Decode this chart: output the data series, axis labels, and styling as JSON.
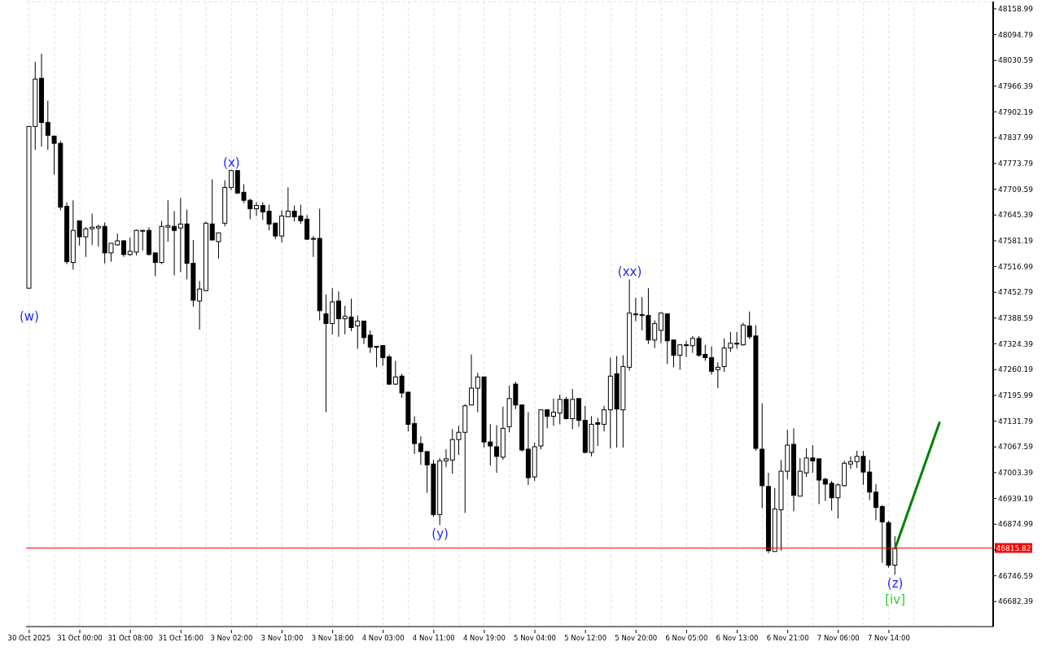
{
  "chart_data": {
    "type": "candlestick",
    "categories": [
      "30 Oct 2025",
      null,
      null,
      null,
      null,
      null,
      null,
      null,
      "31 Oct 00:00",
      null,
      null,
      null,
      null,
      null,
      null,
      null,
      "31 Oct 08:00",
      null,
      null,
      null,
      null,
      null,
      null,
      null,
      "31 Oct 16:00",
      null,
      null,
      null,
      null,
      null,
      null,
      null,
      "3 Nov 02:00",
      null,
      null,
      null,
      null,
      null,
      null,
      null,
      "3 Nov 10:00",
      null,
      null,
      null,
      null,
      null,
      null,
      null,
      "3 Nov 18:00",
      null,
      null,
      null,
      null,
      null,
      null,
      null,
      "4 Nov 03:00",
      null,
      null,
      null,
      null,
      null,
      null,
      null,
      "4 Nov 11:00",
      null,
      null,
      null,
      null,
      null,
      null,
      null,
      "4 Nov 19:00",
      null,
      null,
      null,
      null,
      null,
      null,
      null,
      "5 Nov 04:00",
      null,
      null,
      null,
      null,
      null,
      null,
      null,
      "5 Nov 12:00",
      null,
      null,
      null,
      null,
      null,
      null,
      null,
      "5 Nov 20:00",
      null,
      null,
      null,
      null,
      null,
      null,
      null,
      "6 Nov 05:00",
      null,
      null,
      null,
      null,
      null,
      null,
      null,
      "6 Nov 13:00",
      null,
      null,
      null,
      null,
      null,
      null,
      null,
      "6 Nov 21:00",
      null,
      null,
      null,
      null,
      null,
      null,
      null,
      "7 Nov 06:00",
      null,
      null,
      null,
      null,
      null,
      null,
      null,
      "7 Nov 14:00",
      null,
      null,
      null,
      null,
      null,
      null,
      null,
      null,
      null,
      null,
      null,
      null,
      null,
      null,
      null,
      null
    ],
    "ohlc": [
      [
        47463,
        47866,
        47463,
        47866
      ],
      [
        47866,
        48027,
        47808,
        47984
      ],
      [
        47986,
        48047,
        47816,
        47876
      ],
      [
        47876,
        47930,
        47808,
        47844
      ],
      [
        47842,
        47842,
        47746,
        47824
      ],
      [
        47824,
        47830,
        47657,
        47665
      ],
      [
        47667,
        47677,
        47523,
        47529
      ],
      [
        47527,
        47682,
        47509,
        47607
      ],
      [
        47631,
        47631,
        47569,
        47591
      ],
      [
        47591,
        47615,
        47541,
        47611
      ],
      [
        47611,
        47649,
        47571,
        47615
      ],
      [
        47613,
        47621,
        47567,
        47617
      ],
      [
        47617,
        47627,
        47525,
        47551
      ],
      [
        47551,
        47575,
        47529,
        47575
      ],
      [
        47571,
        47599,
        47569,
        47581
      ],
      [
        47581,
        47583,
        47541,
        47547
      ],
      [
        47547,
        47589,
        47543,
        47555
      ],
      [
        47553,
        47609,
        47545,
        47607
      ],
      [
        47605,
        47607,
        47557,
        47607
      ],
      [
        47607,
        47615,
        47545,
        47547
      ],
      [
        47551,
        47551,
        47493,
        47527
      ],
      [
        47527,
        47631,
        47523,
        47617
      ],
      [
        47615,
        47682,
        47579,
        47619
      ],
      [
        47617,
        47655,
        47495,
        47607
      ],
      [
        47613,
        47688,
        47503,
        47623
      ],
      [
        47623,
        47659,
        47485,
        47525
      ],
      [
        47525,
        47583,
        47417,
        47433
      ],
      [
        47431,
        47481,
        47360,
        47461
      ],
      [
        47457,
        47629,
        47455,
        47625
      ],
      [
        47623,
        47734,
        47583,
        47583
      ],
      [
        47579,
        47601,
        47537,
        47601
      ],
      [
        47625,
        47732,
        47617,
        47714
      ],
      [
        47714,
        47758,
        47708,
        47756
      ],
      [
        47756,
        47756,
        47698,
        47700
      ],
      [
        47702,
        47722,
        47675,
        47682
      ],
      [
        47682,
        47686,
        47635,
        47661
      ],
      [
        47661,
        47677,
        47643,
        47669
      ],
      [
        47669,
        47677,
        47633,
        47653
      ],
      [
        47655,
        47671,
        47607,
        47623
      ],
      [
        47625,
        47627,
        47585,
        47593
      ],
      [
        47593,
        47657,
        47577,
        47643
      ],
      [
        47641,
        47714,
        47641,
        47655
      ],
      [
        47655,
        47669,
        47629,
        47641
      ],
      [
        47643,
        47671,
        47623,
        47631
      ],
      [
        47635,
        47645,
        47583,
        47585
      ],
      [
        47587,
        47593,
        47541,
        47585
      ],
      [
        47587,
        47661,
        47383,
        47407
      ],
      [
        47399,
        47447,
        47154,
        47375
      ],
      [
        47375,
        47463,
        47348,
        47429
      ],
      [
        47431,
        47455,
        47342,
        47387
      ],
      [
        47387,
        47419,
        47348,
        47393
      ],
      [
        47391,
        47437,
        47356,
        47365
      ],
      [
        47369,
        47395,
        47312,
        47381
      ],
      [
        47381,
        47381,
        47324,
        47340
      ],
      [
        47346,
        47358,
        47302,
        47316
      ],
      [
        47318,
        47318,
        47266,
        47316
      ],
      [
        47320,
        47320,
        47270,
        47290
      ],
      [
        47292,
        47298,
        47222,
        47224
      ],
      [
        47224,
        47282,
        47222,
        47242
      ],
      [
        47244,
        47250,
        47190,
        47202
      ],
      [
        47204,
        47204,
        47106,
        47124
      ],
      [
        47126,
        47144,
        47050,
        47076
      ],
      [
        47076,
        47094,
        47023,
        47056
      ],
      [
        47056,
        47056,
        46953,
        47023
      ],
      [
        47025,
        47035,
        46893,
        46899
      ],
      [
        46899,
        47040,
        46873,
        47033
      ],
      [
        47033,
        47062,
        47017,
        47038
      ],
      [
        47035,
        47112,
        47001,
        47086
      ],
      [
        47086,
        47120,
        47048,
        47104
      ],
      [
        47104,
        47174,
        46903,
        47170
      ],
      [
        47172,
        47298,
        47172,
        47214
      ],
      [
        47214,
        47252,
        47154,
        47242
      ],
      [
        47242,
        47242,
        47066,
        47080
      ],
      [
        47080,
        47124,
        47021,
        47070
      ],
      [
        47068,
        47122,
        47003,
        47044
      ],
      [
        47042,
        47168,
        47035,
        47114
      ],
      [
        47118,
        47220,
        47104,
        47188
      ],
      [
        47224,
        47230,
        47162,
        47172
      ],
      [
        47172,
        47174,
        47056,
        47060
      ],
      [
        47062,
        47154,
        46973,
        46991
      ],
      [
        46993,
        47078,
        46983,
        47068
      ],
      [
        47070,
        47160,
        47062,
        47160
      ],
      [
        47160,
        47162,
        47114,
        47144
      ],
      [
        47144,
        47188,
        47120,
        47154
      ],
      [
        47152,
        47198,
        47124,
        47186
      ],
      [
        47186,
        47192,
        47136,
        47138
      ],
      [
        47138,
        47212,
        47112,
        47186
      ],
      [
        47188,
        47188,
        47118,
        47134
      ],
      [
        47134,
        47170,
        47052,
        47054
      ],
      [
        47054,
        47144,
        47044,
        47124
      ],
      [
        47128,
        47140,
        47070,
        47124
      ],
      [
        47124,
        47170,
        47106,
        47160
      ],
      [
        47160,
        47290,
        47064,
        47244
      ],
      [
        47250,
        47294,
        47066,
        47162
      ],
      [
        47160,
        47296,
        47066,
        47268
      ],
      [
        47266,
        47485,
        47258,
        47401
      ],
      [
        47397,
        47439,
        47381,
        47399
      ],
      [
        47397,
        47441,
        47358,
        47395
      ],
      [
        47395,
        47463,
        47324,
        47334
      ],
      [
        47334,
        47383,
        47314,
        47375
      ],
      [
        47358,
        47403,
        47326,
        47401
      ],
      [
        47399,
        47399,
        47274,
        47332
      ],
      [
        47334,
        47334,
        47266,
        47296
      ],
      [
        47296,
        47324,
        47260,
        47322
      ],
      [
        47322,
        47332,
        47292,
        47320
      ],
      [
        47320,
        47344,
        47302,
        47338
      ],
      [
        47338,
        47344,
        47292,
        47296
      ],
      [
        47298,
        47322,
        47282,
        47290
      ],
      [
        47290,
        47318,
        47248,
        47256
      ],
      [
        47260,
        47278,
        47214,
        47266
      ],
      [
        47268,
        47338,
        47254,
        47314
      ],
      [
        47314,
        47354,
        47304,
        47326
      ],
      [
        47324,
        47354,
        47312,
        47326
      ],
      [
        47322,
        47377,
        47320,
        47371
      ],
      [
        47369,
        47405,
        47336,
        47342
      ],
      [
        47344,
        47371,
        47058,
        47064
      ],
      [
        47062,
        47176,
        46915,
        46971
      ],
      [
        46969,
        47003,
        46803,
        46809
      ],
      [
        46807,
        46965,
        46807,
        46913
      ],
      [
        46911,
        47035,
        46809,
        47007
      ],
      [
        47007,
        47110,
        46987,
        47072
      ],
      [
        47074,
        47114,
        46907,
        46947
      ],
      [
        46945,
        47040,
        46945,
        47007
      ],
      [
        47003,
        47064,
        46993,
        47040
      ],
      [
        47040,
        47072,
        47003,
        47033
      ],
      [
        47038,
        47038,
        46925,
        46985
      ],
      [
        46987,
        46991,
        46933,
        46975
      ],
      [
        46977,
        46983,
        46909,
        46941
      ],
      [
        46941,
        46977,
        46889,
        46973
      ],
      [
        46971,
        47033,
        46969,
        47027
      ],
      [
        47025,
        47044,
        47013,
        47031
      ],
      [
        47031,
        47058,
        47015,
        47044
      ],
      [
        47044,
        47058,
        46973,
        47005
      ],
      [
        47005,
        47035,
        46935,
        46955
      ],
      [
        46955,
        46975,
        46885,
        46917
      ],
      [
        46919,
        46923,
        46779,
        46881
      ],
      [
        46879,
        46883,
        46767,
        46773
      ],
      [
        46773,
        46845,
        46749,
        46815
      ],
      null,
      null,
      null,
      null,
      null,
      null,
      null,
      null,
      null,
      null,
      null,
      null,
      null,
      null,
      null
    ],
    "series": [
      {
        "type": "line",
        "color": "#008000",
        "values": [
          null,
          null,
          null,
          null,
          null,
          null,
          null,
          null,
          null,
          null,
          null,
          null,
          null,
          null,
          null,
          null,
          null,
          null,
          null,
          null,
          null,
          null,
          null,
          null,
          null,
          null,
          null,
          null,
          null,
          null,
          null,
          null,
          null,
          null,
          null,
          null,
          null,
          null,
          null,
          null,
          null,
          null,
          null,
          null,
          null,
          null,
          null,
          null,
          null,
          null,
          null,
          null,
          null,
          null,
          null,
          null,
          null,
          null,
          null,
          null,
          null,
          null,
          null,
          null,
          null,
          null,
          null,
          null,
          null,
          null,
          null,
          null,
          null,
          null,
          null,
          null,
          null,
          null,
          null,
          null,
          null,
          null,
          null,
          null,
          null,
          null,
          null,
          null,
          null,
          null,
          null,
          null,
          null,
          null,
          null,
          null,
          null,
          null,
          null,
          null,
          null,
          null,
          null,
          null,
          null,
          null,
          null,
          null,
          null,
          null,
          null,
          null,
          null,
          null,
          null,
          null,
          null,
          null,
          null,
          null,
          null,
          null,
          null,
          null,
          null,
          null,
          null,
          null,
          null,
          null,
          null,
          null,
          null,
          null,
          null,
          null,
          null,
          46815,
          null,
          null,
          null,
          null,
          null,
          null,
          47128,
          null,
          null,
          null,
          null,
          null,
          null,
          null,
          null
        ]
      }
    ],
    "ylim": [
      46620,
      48177
    ],
    "yticks": [
      46682.39,
      46746.59,
      {
        "value": 46810.79,
        "label": null
      },
      46874.99,
      46939.19,
      47003.39,
      47067.59,
      47131.79,
      47195.99,
      47260.19,
      47324.39,
      47388.59,
      47452.79,
      47516.99,
      47581.19,
      47645.39,
      47709.59,
      47773.79,
      47837.99,
      47902.19,
      47966.39,
      48030.59,
      48094.79,
      48158.99
    ],
    "grid": true,
    "ref_lines": [
      {
        "axis": "y",
        "value": 46815.82,
        "label": "46815.82",
        "color": "#ff0000"
      }
    ],
    "annotations": [
      "(w)",
      "(x)",
      "(xx)",
      "(y)",
      "(z)",
      "[iv]"
    ]
  }
}
